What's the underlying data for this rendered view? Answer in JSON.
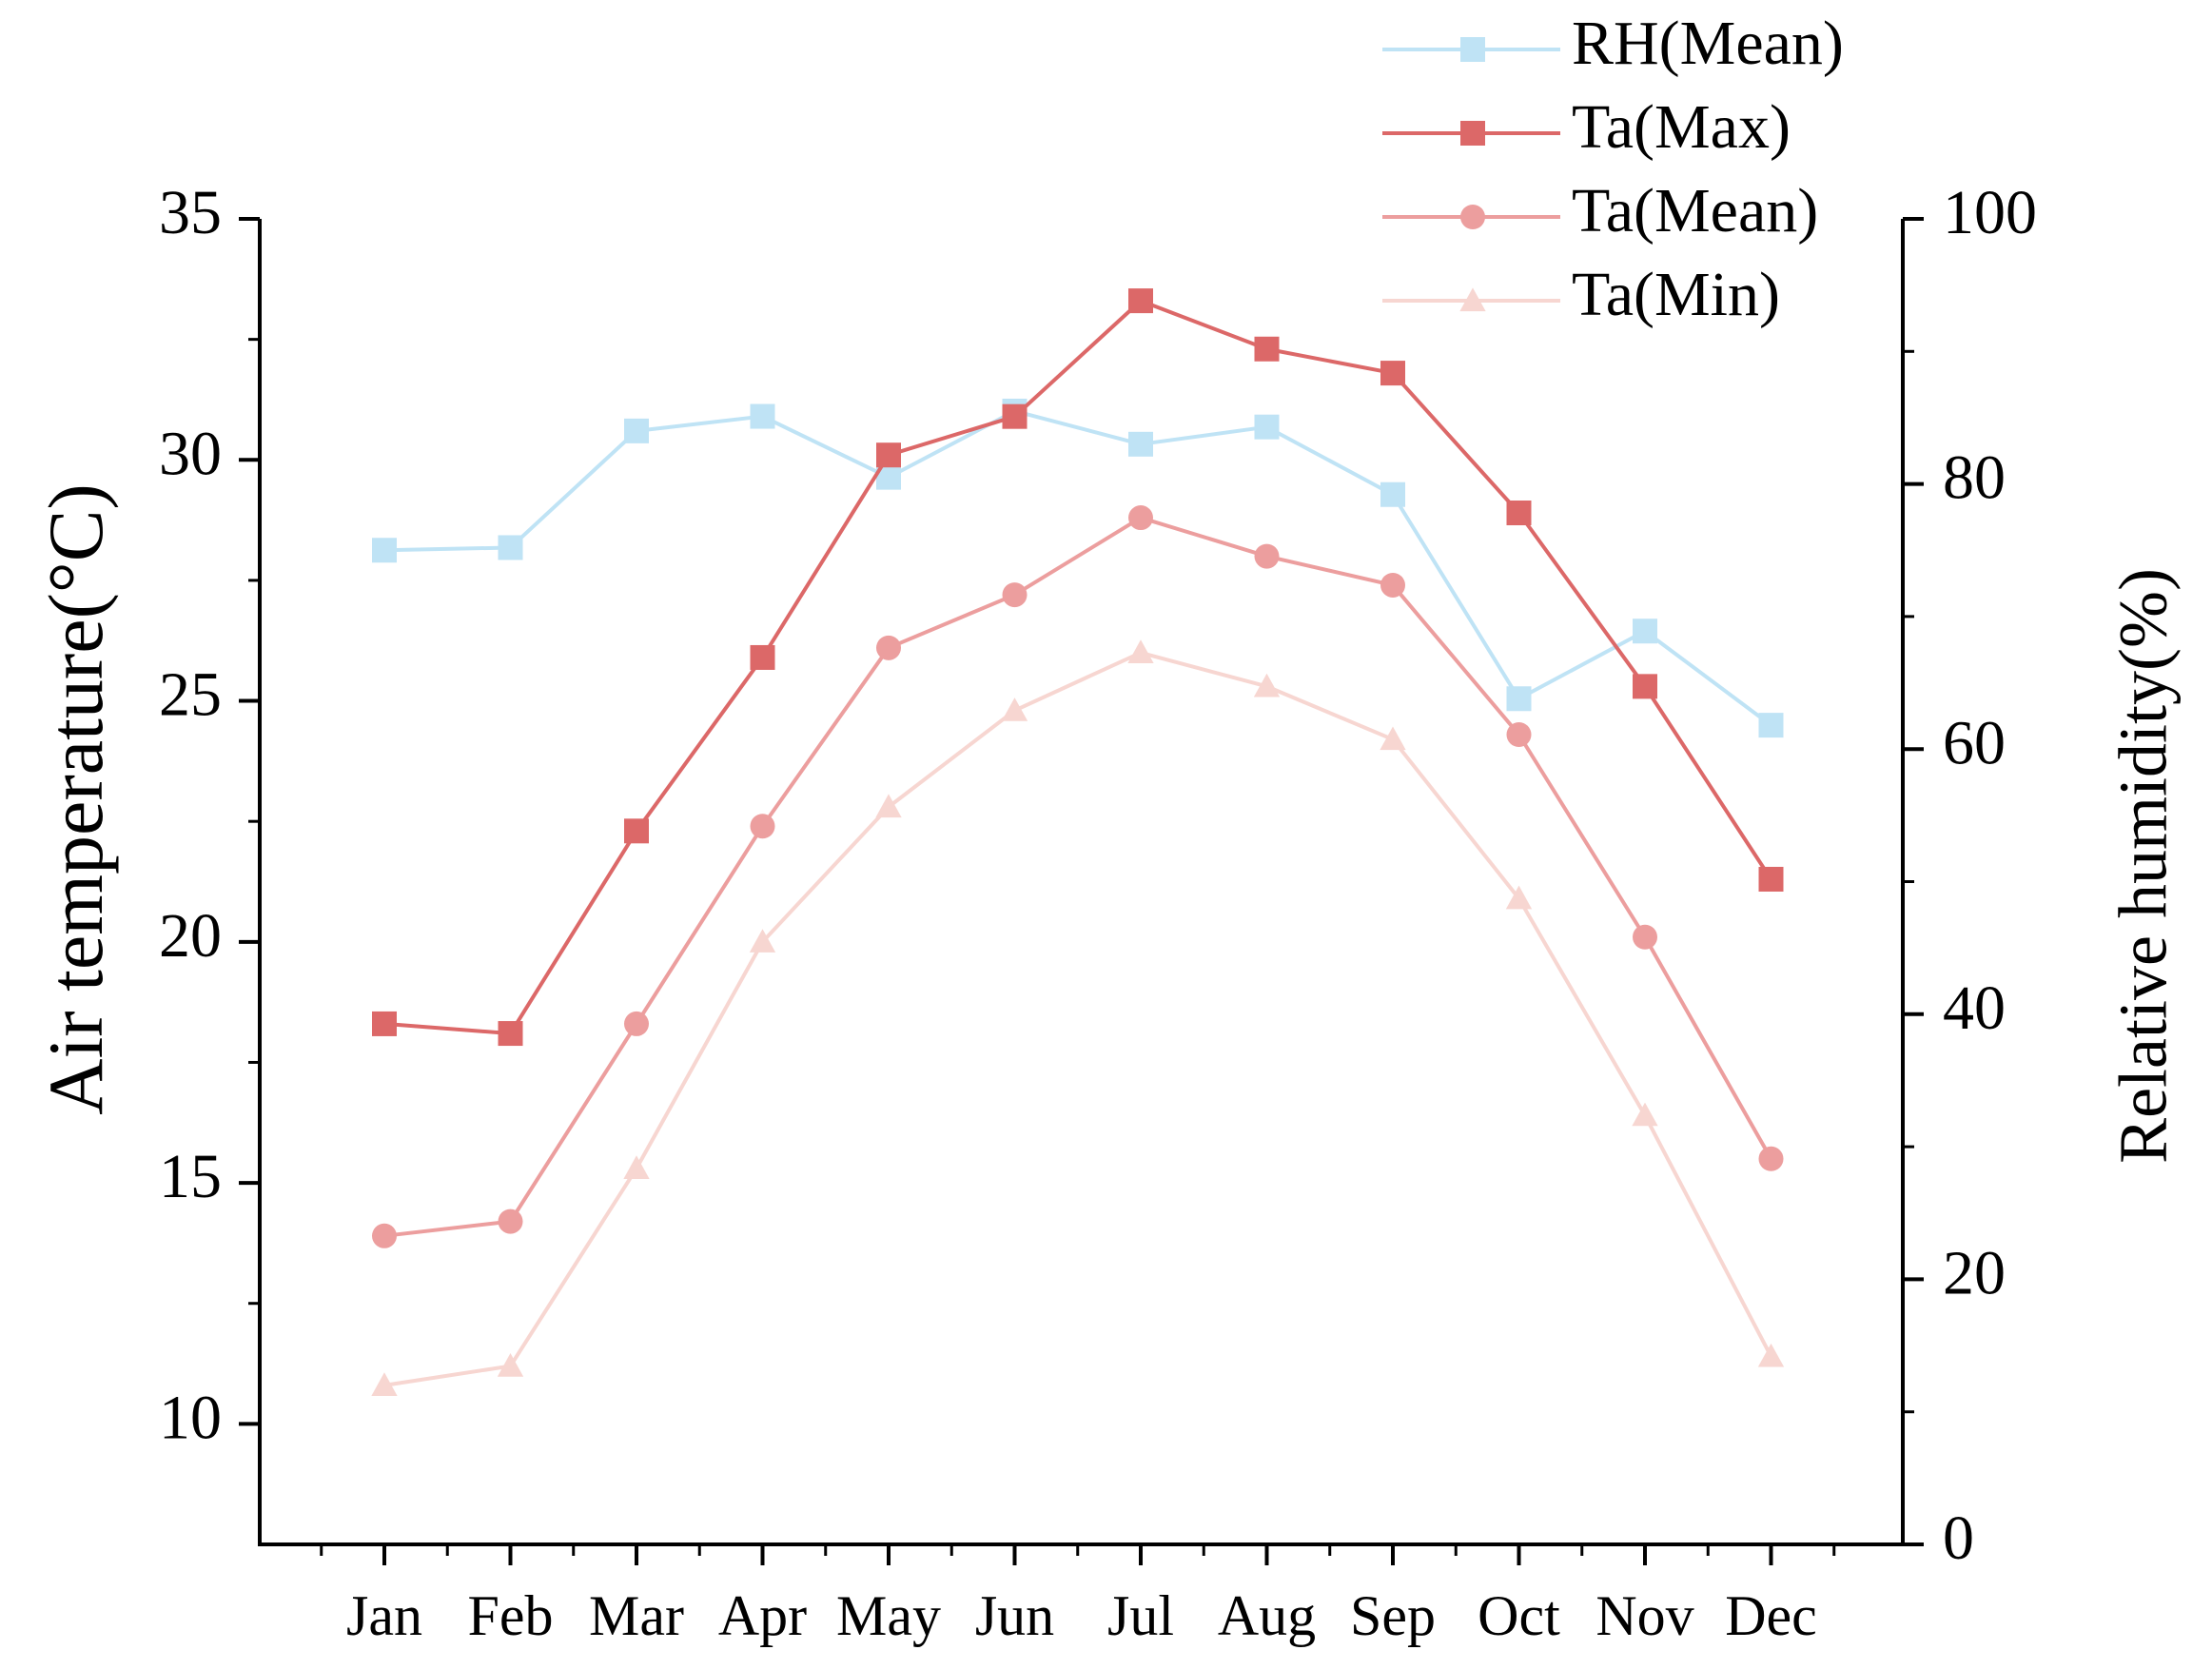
{
  "chart_data": {
    "type": "line",
    "categories": [
      "Jan",
      "Feb",
      "Mar",
      "Apr",
      "May",
      "Jun",
      "Jul",
      "Aug",
      "Sep",
      "Oct",
      "Nov",
      "Dec"
    ],
    "left_axis": {
      "label": "Air temperature(°C)",
      "range": [
        7.5,
        35
      ],
      "ticks": [
        10,
        15,
        20,
        25,
        30,
        35
      ]
    },
    "right_axis": {
      "label": "Relative humidity(%)",
      "range": [
        0,
        100
      ],
      "ticks": [
        0,
        20,
        40,
        60,
        80,
        100
      ]
    },
    "legend_position": "top-right",
    "series": [
      {
        "name": "RH(Mean)",
        "axis": "right",
        "marker": "square",
        "color": "#bfe3f5",
        "values": [
          75,
          75.2,
          84,
          85.1,
          80.5,
          85.5,
          83,
          84.3,
          79.2,
          63.8,
          68.9,
          61.8
        ]
      },
      {
        "name": "Ta(Max)",
        "axis": "left",
        "marker": "square",
        "color": "#dc6868",
        "values": [
          18.3,
          18.1,
          22.3,
          25.9,
          30.1,
          30.9,
          33.3,
          32.3,
          31.8,
          28.9,
          25.3,
          21.3
        ]
      },
      {
        "name": "Ta(Mean)",
        "axis": "left",
        "marker": "circle",
        "color": "#ec9e9e",
        "values": [
          13.9,
          14.2,
          18.3,
          22.4,
          26.1,
          27.2,
          28.8,
          28.0,
          27.4,
          24.3,
          20.1,
          15.5
        ]
      },
      {
        "name": "Ta(Min)",
        "axis": "left",
        "marker": "triangle",
        "color": "#f7d6d1",
        "values": [
          10.8,
          11.2,
          15.3,
          20.0,
          22.8,
          24.8,
          26.0,
          25.3,
          24.2,
          20.9,
          16.4,
          11.4
        ]
      }
    ]
  }
}
